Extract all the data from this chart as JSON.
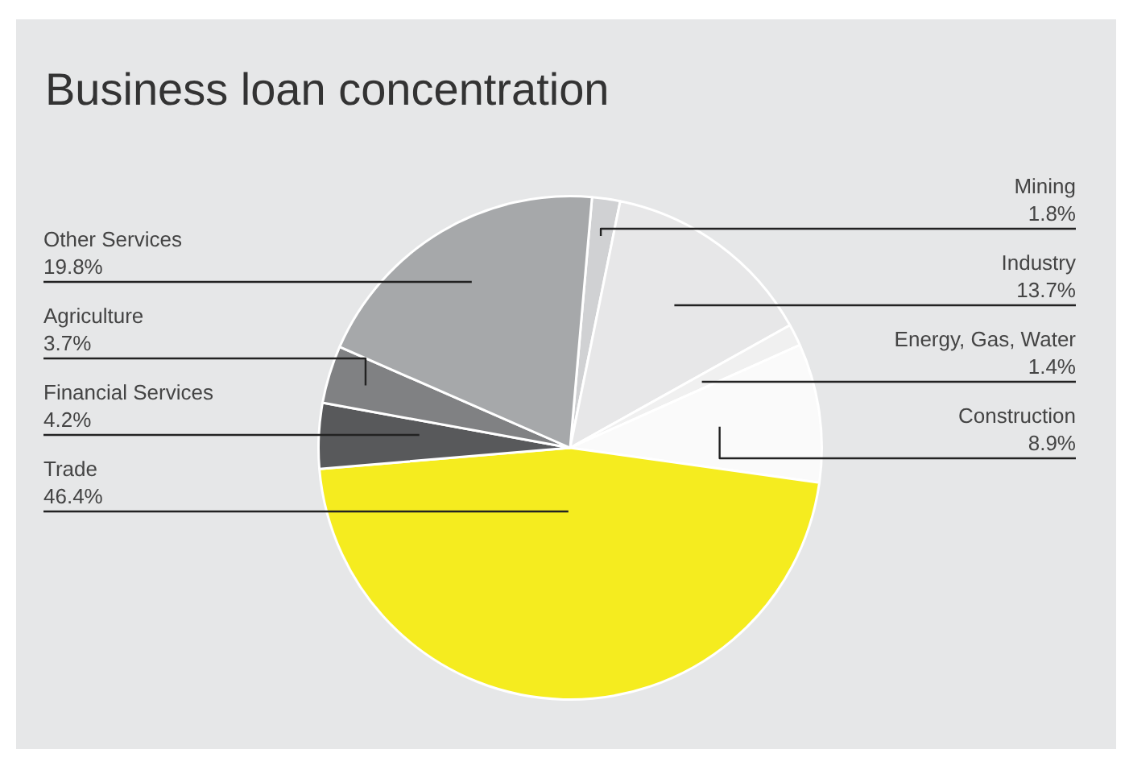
{
  "chart_data": {
    "type": "pie",
    "title": "Business loan concentration",
    "categories": [
      "Mining",
      "Industry",
      "Energy, Gas, Water",
      "Construction",
      "Trade",
      "Financial Services",
      "Agriculture",
      "Other Services"
    ],
    "values": [
      1.8,
      13.7,
      1.4,
      8.9,
      46.4,
      4.2,
      3.7,
      19.8
    ],
    "value_labels": [
      "1.8%",
      "13.7%",
      "1.4%",
      "8.9%",
      "46.4%",
      "4.2%",
      "3.7%",
      "19.8%"
    ],
    "colors": [
      "#d0d1d3",
      "#e7e7e8",
      "#f0f0f0",
      "#fafafa",
      "#f5ec1f",
      "#58595b",
      "#808183",
      "#a6a8aa"
    ],
    "legend": false
  }
}
